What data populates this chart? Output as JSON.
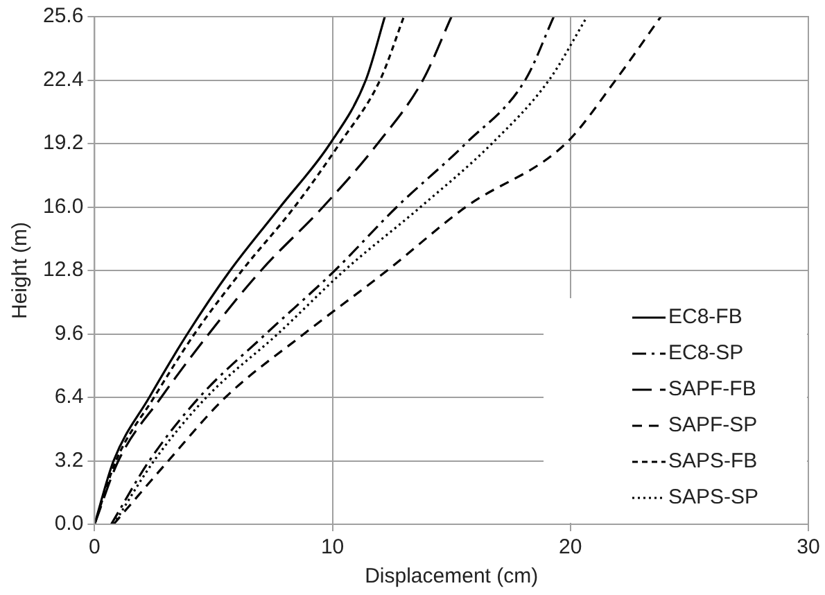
{
  "chart_data": {
    "type": "line",
    "xlabel": "Displacement (cm)",
    "ylabel": "Height (m)",
    "xlim": [
      0,
      30
    ],
    "xticks": [
      0,
      10,
      20,
      30
    ],
    "ylim": [
      0,
      25.6
    ],
    "yticks": [
      {
        "value": 0,
        "label": "0.0"
      },
      {
        "value": 3.2,
        "label": "3.2"
      },
      {
        "value": 6.4,
        "label": "6.4"
      },
      {
        "value": 9.6,
        "label": "9.6"
      },
      {
        "value": 12.8,
        "label": "12.8"
      },
      {
        "value": 16,
        "label": "16.0"
      },
      {
        "value": 19.2,
        "label": "19.2"
      },
      {
        "value": 22.4,
        "label": "22.4"
      },
      {
        "value": 25.6,
        "label": "25.6"
      }
    ],
    "grid": true,
    "legend": "right",
    "marker": "none",
    "series": [
      {
        "name": "EC8-FB",
        "color": "#000000",
        "line_style": "solid",
        "x": [
          0,
          0.8,
          2.3,
          3.9,
          5.7,
          7.8,
          9.9,
          11.4,
          12.2
        ],
        "values": [
          0,
          3.2,
          6.4,
          9.6,
          12.8,
          16,
          19.2,
          22.4,
          25.6
        ]
      },
      {
        "name": "EC8-SP",
        "color": "#000000",
        "line_style": "dashdot",
        "x": [
          0.7,
          2.3,
          4.4,
          7.2,
          10.1,
          12.7,
          15.6,
          18.1,
          19.3
        ],
        "values": [
          0,
          3.2,
          6.4,
          9.6,
          12.8,
          16,
          19.2,
          22.4,
          25.6
        ]
      },
      {
        "name": "SAPF-FB",
        "color": "#000000",
        "line_style": "longdash",
        "x": [
          0,
          1,
          2.8,
          4.8,
          7,
          9.6,
          11.9,
          13.8,
          15
        ],
        "values": [
          0,
          3.2,
          6.4,
          9.6,
          12.8,
          16,
          19.2,
          22.4,
          25.6
        ]
      },
      {
        "name": "SAPF-SP",
        "color": "#000000",
        "line_style": "dashed",
        "x": [
          0.8,
          3.1,
          5.5,
          8.8,
          12.3,
          15.6,
          19.8,
          21.9,
          23.8
        ],
        "values": [
          0,
          3.2,
          6.4,
          9.6,
          12.8,
          16,
          19.2,
          22.4,
          25.6
        ]
      },
      {
        "name": "SAPS-FB",
        "color": "#000000",
        "line_style": "shortdash",
        "x": [
          0,
          0.9,
          2.5,
          4.2,
          6.2,
          8.4,
          10.3,
          12,
          13
        ],
        "values": [
          0,
          3.2,
          6.4,
          9.6,
          12.8,
          16,
          19.2,
          22.4,
          25.6
        ]
      },
      {
        "name": "SAPS-SP",
        "color": "#000000",
        "line_style": "dotted",
        "x": [
          0.8,
          2.5,
          4.7,
          7.7,
          10.5,
          13.7,
          16.7,
          19.1,
          20.7
        ],
        "values": [
          0,
          3.2,
          6.4,
          9.6,
          12.8,
          16,
          19.2,
          22.4,
          25.6
        ]
      }
    ]
  }
}
